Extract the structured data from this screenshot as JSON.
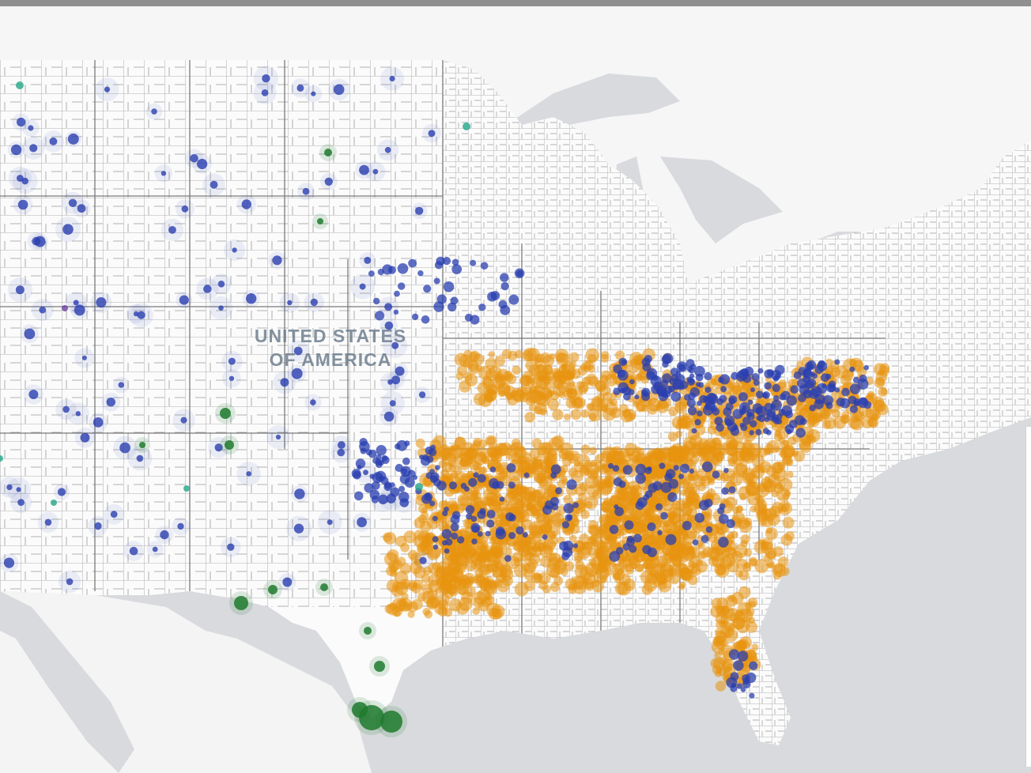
{
  "map": {
    "country_label_line1": "UNITED STATES",
    "country_label_line2": "OF AMERICA",
    "colors": {
      "water": "#d8dadd",
      "land": "#fbfbfb",
      "county_borders": "#8c8c8c",
      "category_orange": "#e8930f",
      "category_blue": "#2a3fb0",
      "category_green": "#1f7a2e",
      "category_teal": "#25a88a",
      "category_purple": "#6a3fa0"
    }
  }
}
